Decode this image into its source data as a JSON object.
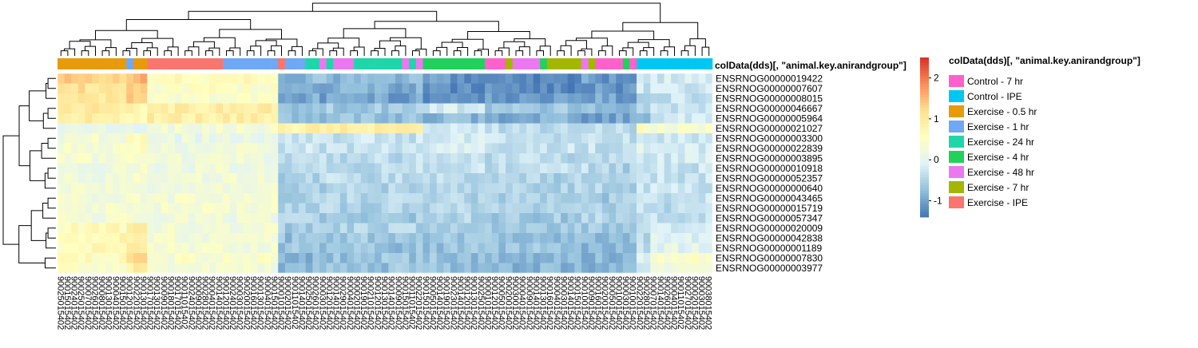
{
  "chart_data": {
    "type": "heatmap",
    "annotation_track_label": "colData(dds)[, \"animal.key.anirandgroup\"]",
    "legend_title": "colData(dds)[, \"animal.key.anirandgroup\"]",
    "groups": [
      {
        "name": "Control - 7 hr",
        "color": "#FF61CC"
      },
      {
        "name": "Control - IPE",
        "color": "#00C7F2"
      },
      {
        "name": "Exercise - 0.5 hr",
        "color": "#E89B0A"
      },
      {
        "name": "Exercise - 1 hr",
        "color": "#6FA8F5"
      },
      {
        "name": "Exercise - 24 hr",
        "color": "#1FD6AA"
      },
      {
        "name": "Exercise - 4 hr",
        "color": "#21D15C"
      },
      {
        "name": "Exercise - 48 hr",
        "color": "#EC78F0"
      },
      {
        "name": "Exercise - 7 hr",
        "color": "#A3B600"
      },
      {
        "name": "Exercise - IPE",
        "color": "#F8766D"
      }
    ],
    "column_groups": [
      2,
      2,
      2,
      2,
      2,
      2,
      2,
      2,
      2,
      2,
      3,
      2,
      2,
      8,
      8,
      8,
      8,
      8,
      8,
      8,
      8,
      8,
      8,
      8,
      3,
      3,
      3,
      3,
      3,
      3,
      3,
      3,
      8,
      3,
      3,
      3,
      4,
      4,
      6,
      4,
      6,
      6,
      6,
      4,
      4,
      4,
      4,
      4,
      4,
      4,
      6,
      4,
      6,
      5,
      5,
      5,
      5,
      5,
      5,
      5,
      5,
      5,
      0,
      0,
      0,
      7,
      6,
      6,
      6,
      6,
      5,
      7,
      7,
      7,
      7,
      7,
      6,
      7,
      0,
      0,
      0,
      0,
      5,
      0,
      1,
      1,
      1,
      1,
      1,
      1,
      1,
      1,
      1,
      1,
      1
    ],
    "column_labels": [
      "90025015402",
      "90015015402",
      "90024015402",
      "90025015402",
      "90007015402",
      "90026015402",
      "90008015402",
      "90013015402",
      "90004015402",
      "90015015402",
      "90012015402",
      "90022015402",
      "90013015402",
      "90017015402",
      "90013015402",
      "90009015402",
      "90018015402",
      "90017015402",
      "90011015402",
      "90024015402",
      "90009015402",
      "90028015402",
      "90004015402",
      "90014015402",
      "90012015402",
      "90024015402",
      "90003015402",
      "90020015402",
      "90016015402",
      "90013015402",
      "90004015402",
      "90015015402",
      "90001015402",
      "90002015402",
      "90011015402",
      "90014015402",
      "90025015402",
      "90026015402",
      "90003015402",
      "90012015402",
      "90014015402",
      "90029015402",
      "90004015402",
      "90002015402",
      "90019015402",
      "90021015402",
      "90012015402",
      "90013015402",
      "90014015402",
      "90009015402",
      "90015015402",
      "90011015402",
      "90022015402",
      "90015015402",
      "90005015402",
      "90014015402",
      "90019015402",
      "90023015402",
      "90014015402",
      "90012015402",
      "90013015402",
      "90025015402",
      "90001015402",
      "90012015402",
      "90005015402",
      "90020015402",
      "90030015402",
      "90004015402",
      "90009015402",
      "90014015402",
      "90013015402",
      "90016015402",
      "90004015402",
      "90003015402",
      "90014015402",
      "90015015402",
      "90010015402",
      "90009015402",
      "90016015402",
      "90020015402",
      "90005015402",
      "90010015402",
      "90003015402",
      "90010015402",
      "90022015402",
      "90028015402",
      "90007015402",
      "90014015402",
      "90026015402",
      "90004015402",
      "90011015402",
      "90027015402",
      "90002015402",
      "90003015402",
      "90038015402"
    ],
    "row_labels": [
      "ENSRNOG00000019422",
      "ENSRNOG00000007607",
      "ENSRNOG00000008015",
      "ENSRNOG00000046667",
      "ENSRNOG00000005964",
      "ENSRNOG00000021027",
      "ENSRNOG00000003300",
      "ENSRNOG00000022839",
      "ENSRNOG00000003895",
      "ENSRNOG00000010918",
      "ENSRNOG00000052357",
      "ENSRNOG00000000640",
      "ENSRNOG00000043465",
      "ENSRNOG00000015719",
      "ENSRNOG00000057347",
      "ENSRNOG00000020009",
      "ENSRNOG00000042838",
      "ENSRNOG00000001189",
      "ENSRNOG00000007830",
      "ENSRNOG00000003977"
    ],
    "row_profiles": [
      [
        1.3,
        1.5,
        0.6,
        -0.8,
        -0.8,
        -1.1,
        -1.2,
        -1.0,
        -1.1,
        -0.4,
        -0.2
      ],
      [
        1.1,
        1.3,
        0.5,
        -0.9,
        -0.9,
        -1.2,
        -1.2,
        -1.1,
        -1.1,
        -0.3,
        -0.3
      ],
      [
        1.0,
        1.4,
        0.4,
        -0.9,
        -1.0,
        -1.1,
        -1.1,
        -1.0,
        -1.0,
        -0.4,
        -0.3
      ],
      [
        1.0,
        0.8,
        0.9,
        -0.7,
        -0.6,
        -0.2,
        -0.6,
        -0.8,
        -0.9,
        -0.5,
        -0.3
      ],
      [
        0.9,
        0.7,
        0.9,
        -0.8,
        -0.7,
        -0.8,
        -0.9,
        -1.0,
        -1.0,
        -0.7,
        -0.2
      ],
      [
        0.1,
        -0.1,
        0.3,
        0.8,
        0.9,
        -0.3,
        -0.4,
        -0.3,
        -0.4,
        0.6,
        0.4
      ],
      [
        0.3,
        0.5,
        0.1,
        -0.3,
        -0.3,
        -0.2,
        -0.3,
        -0.4,
        -0.4,
        -0.2,
        -0.2
      ],
      [
        0.4,
        0.5,
        0.2,
        -0.3,
        -0.3,
        -0.2,
        -0.3,
        -0.3,
        -0.4,
        -0.1,
        -0.2
      ],
      [
        0.3,
        0.4,
        0.2,
        -0.4,
        -0.4,
        -0.3,
        -0.4,
        -0.4,
        -0.4,
        -0.2,
        -0.2
      ],
      [
        0.2,
        0.3,
        0.2,
        -0.4,
        -0.4,
        -0.3,
        -0.4,
        -0.4,
        -0.5,
        -0.2,
        -0.3
      ],
      [
        0.2,
        0.3,
        0.2,
        -0.5,
        -0.4,
        -0.4,
        -0.5,
        -0.5,
        -0.5,
        -0.3,
        -0.3
      ],
      [
        0.3,
        0.4,
        0.2,
        -0.5,
        -0.5,
        -0.4,
        -0.5,
        -0.5,
        -0.5,
        -0.3,
        -0.3
      ],
      [
        0.3,
        0.4,
        0.3,
        -0.5,
        -0.5,
        -0.5,
        -0.5,
        -0.6,
        -0.6,
        -0.3,
        -0.3
      ],
      [
        0.3,
        0.3,
        0.3,
        -0.5,
        -0.5,
        -0.5,
        -0.5,
        -0.5,
        -0.6,
        -0.3,
        -0.4
      ],
      [
        0.3,
        0.3,
        0.2,
        -0.5,
        -0.6,
        -0.5,
        -0.6,
        -0.5,
        -0.6,
        -0.3,
        -0.3
      ],
      [
        0.6,
        1.1,
        0.3,
        -0.6,
        -0.5,
        -0.5,
        -0.6,
        -0.6,
        -0.6,
        -0.3,
        -0.1
      ],
      [
        0.7,
        0.9,
        0.3,
        -0.7,
        -0.6,
        -0.6,
        -0.7,
        -0.7,
        -0.7,
        -0.4,
        -0.1
      ],
      [
        0.6,
        0.9,
        0.3,
        -0.7,
        -0.7,
        -0.7,
        -0.7,
        -0.8,
        -0.7,
        -0.4,
        0.0
      ],
      [
        0.6,
        1.1,
        0.4,
        -0.8,
        -0.7,
        -0.7,
        -0.8,
        -0.8,
        -0.8,
        -0.2,
        0.4
      ],
      [
        0.5,
        0.9,
        0.3,
        -0.8,
        -0.7,
        -0.7,
        -0.8,
        -0.8,
        -0.8,
        -0.3,
        0.3
      ]
    ],
    "value_scale": {
      "min": -1.4,
      "max": 2.5,
      "ticks": [
        2,
        1,
        0,
        -1
      ]
    },
    "color_scale": [
      "#4575B4",
      "#91BFDB",
      "#E0F3F8",
      "#FFFFBF",
      "#FEE090",
      "#FC8D59",
      "#D73027"
    ]
  }
}
